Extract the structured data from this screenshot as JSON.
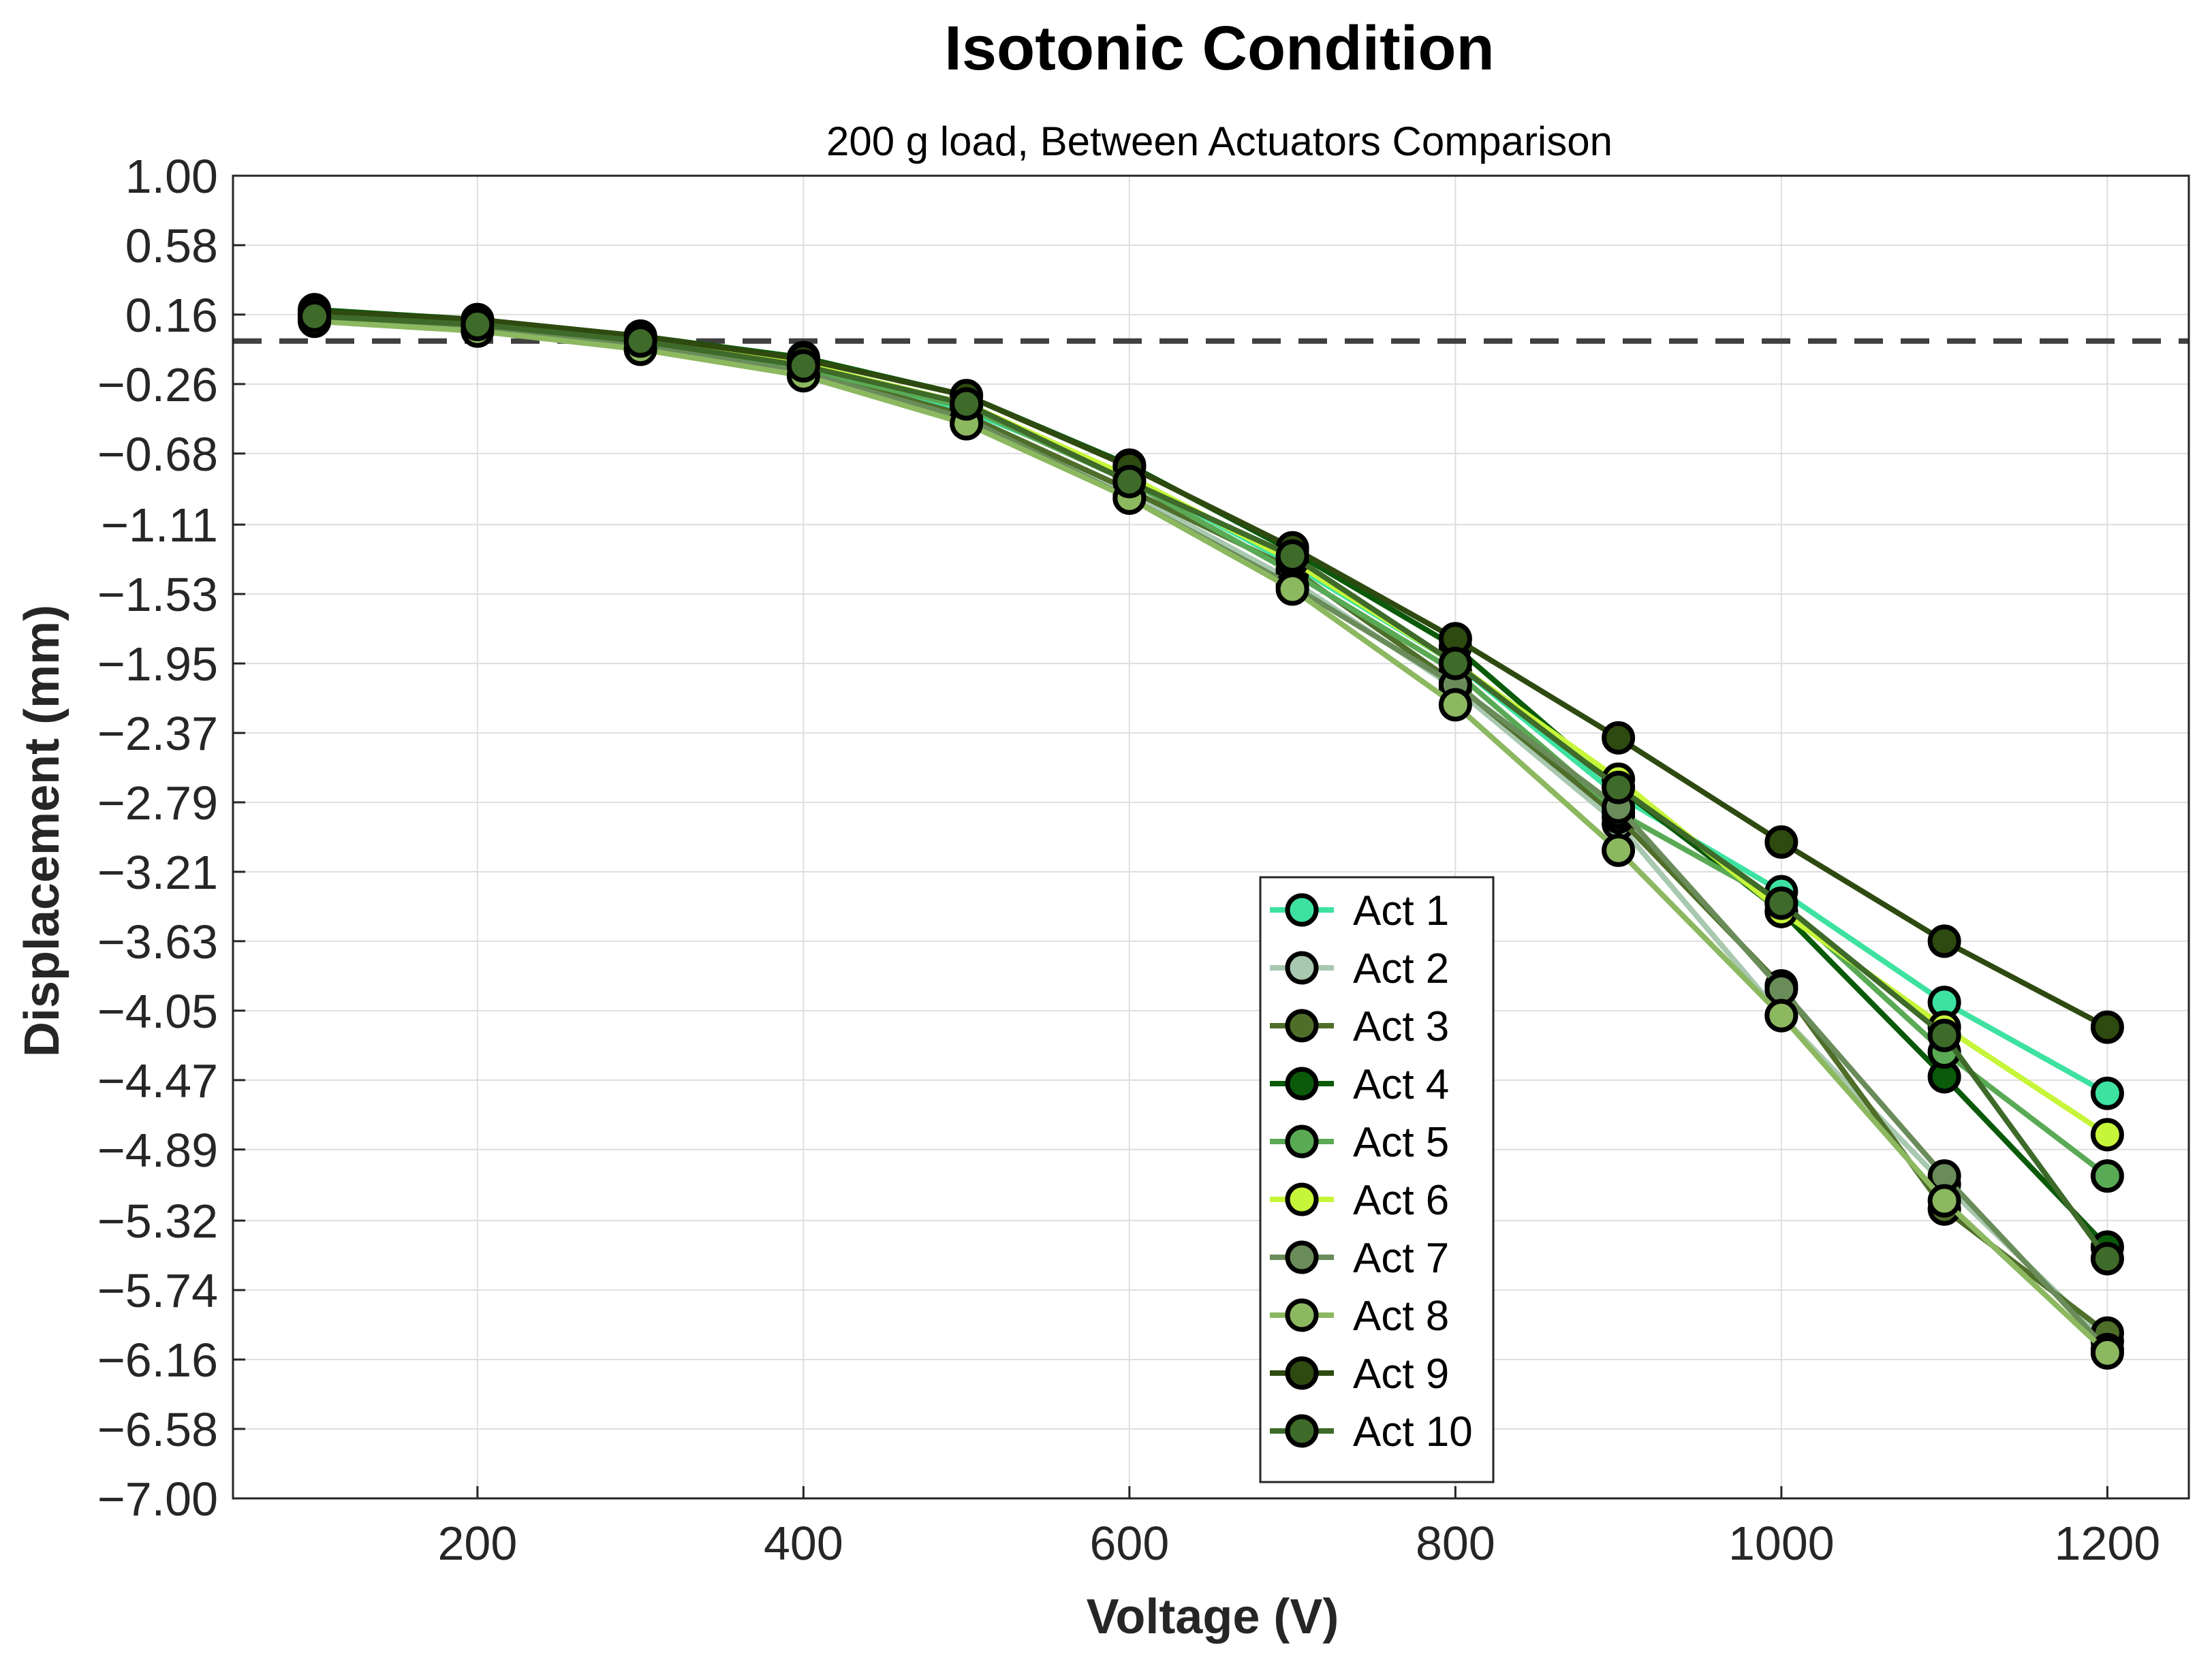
{
  "chart_data": {
    "type": "line",
    "title": "Isotonic Condition",
    "subtitle": "200 g load, Between Actuators Comparison",
    "xlabel": "Voltage (V)",
    "ylabel": "Displacement (mm)",
    "xlim": [
      50,
      1250
    ],
    "ylim": [
      -7.0,
      1.0
    ],
    "xticks": [
      200,
      400,
      600,
      800,
      1000,
      1200
    ],
    "xtick_labels": [
      "200",
      "400",
      "600",
      "800",
      "1000",
      "1200"
    ],
    "yticks": [
      1.0,
      0.58,
      0.16,
      -0.26,
      -0.68,
      -1.11,
      -1.53,
      -1.95,
      -2.37,
      -2.79,
      -3.21,
      -3.63,
      -4.05,
      -4.47,
      -4.89,
      -5.32,
      -5.74,
      -6.16,
      -6.58,
      -7.0
    ],
    "ytick_labels": [
      "1.00",
      "0.58",
      "0.16",
      "−0.26",
      "−0.68",
      "−1.11",
      "−1.53",
      "−1.95",
      "−2.37",
      "−2.79",
      "−3.21",
      "−3.63",
      "−4.05",
      "−4.47",
      "−4.89",
      "−5.32",
      "−5.74",
      "−6.16",
      "−6.58",
      "−7.00"
    ],
    "grid": true,
    "reference_line": {
      "y": 0.0,
      "style": "dashed",
      "color": "#404040"
    },
    "legend": {
      "position": "lower-center"
    },
    "x": [
      100,
      200,
      300,
      400,
      500,
      600,
      700,
      800,
      900,
      1000,
      1100,
      1200
    ],
    "series": [
      {
        "name": "Act 1",
        "color": "#3ee2a0",
        "values": [
          0.16,
          0.1,
          0.0,
          -0.15,
          -0.42,
          -0.82,
          -1.35,
          -1.95,
          -2.75,
          -3.33,
          -4.0,
          -4.55
        ]
      },
      {
        "name": "Act 2",
        "color": "#a8c8b0",
        "values": [
          0.12,
          0.07,
          -0.04,
          -0.2,
          -0.48,
          -0.92,
          -1.45,
          -2.1,
          -2.92,
          -4.08,
          -5.1,
          -6.05
        ]
      },
      {
        "name": "Act 3",
        "color": "#4f6e2a",
        "values": [
          0.14,
          0.08,
          -0.03,
          -0.18,
          -0.45,
          -0.9,
          -1.38,
          -2.07,
          -2.88,
          -3.9,
          -5.25,
          -6.0
        ]
      },
      {
        "name": "Act 4",
        "color": "#0a5a0a",
        "values": [
          0.19,
          0.13,
          0.03,
          -0.1,
          -0.33,
          -0.75,
          -1.27,
          -1.85,
          -2.7,
          -3.45,
          -4.45,
          -5.48
        ]
      },
      {
        "name": "Act 5",
        "color": "#5aaa55",
        "values": [
          0.15,
          0.09,
          -0.02,
          -0.17,
          -0.4,
          -0.85,
          -1.4,
          -2.0,
          -2.85,
          -3.4,
          -4.3,
          -5.05
        ]
      },
      {
        "name": "Act 6",
        "color": "#c6f53a",
        "values": [
          0.17,
          0.11,
          0.01,
          -0.14,
          -0.38,
          -0.82,
          -1.33,
          -1.95,
          -2.65,
          -3.45,
          -4.15,
          -4.8
        ]
      },
      {
        "name": "Act 7",
        "color": "#6a8c5a",
        "values": [
          0.13,
          0.08,
          -0.03,
          -0.19,
          -0.47,
          -0.95,
          -1.48,
          -2.08,
          -2.82,
          -3.92,
          -5.05,
          -6.1
        ]
      },
      {
        "name": "Act 8",
        "color": "#8cb860",
        "values": [
          0.12,
          0.06,
          -0.05,
          -0.21,
          -0.5,
          -0.95,
          -1.5,
          -2.2,
          -3.08,
          -4.08,
          -5.2,
          -6.12
        ]
      },
      {
        "name": "Act 9",
        "color": "#2e4a10",
        "values": [
          0.18,
          0.13,
          0.03,
          -0.11,
          -0.33,
          -0.76,
          -1.25,
          -1.8,
          -2.4,
          -3.03,
          -3.63,
          -4.15
        ]
      },
      {
        "name": "Act 10",
        "color": "#3e6a2a",
        "values": [
          0.15,
          0.1,
          0.0,
          -0.15,
          -0.38,
          -0.85,
          -1.3,
          -1.95,
          -2.7,
          -3.4,
          -4.2,
          -5.55
        ]
      }
    ]
  }
}
